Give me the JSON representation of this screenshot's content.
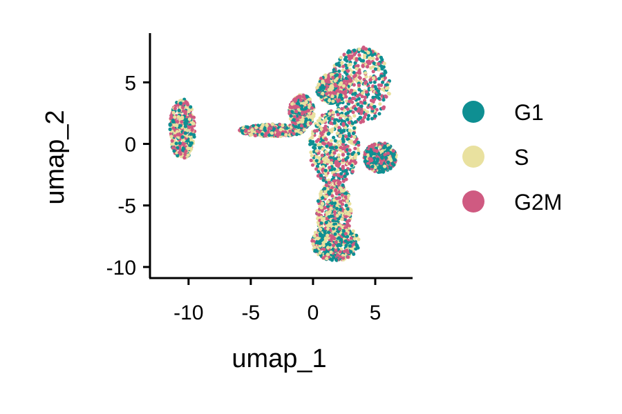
{
  "chart_data": {
    "type": "scatter",
    "title": "",
    "xlabel": "umap_1",
    "ylabel": "umap_2",
    "xlim": [
      -13.1,
      8.0
    ],
    "ylim": [
      -10.9,
      9.0
    ],
    "xticks": [
      -10,
      -5,
      0,
      5
    ],
    "xtick_labels": [
      "-10",
      "-5",
      "0",
      "5"
    ],
    "yticks": [
      -10,
      -5,
      0,
      5
    ],
    "ytick_labels": [
      "-10",
      "-5",
      "0",
      "5"
    ],
    "grid": false,
    "legend_position": "right",
    "series": [
      {
        "name": "G1",
        "color": "#0E8F92"
      },
      {
        "name": "S",
        "color": "#E9E19F"
      },
      {
        "name": "G2M",
        "color": "#CF5A81"
      }
    ],
    "clusters": [
      {
        "center": [
          -10.5,
          1.2
        ],
        "spread": [
          1.0,
          2.5
        ],
        "weights": [
          0.25,
          0.35,
          0.4
        ]
      },
      {
        "center": [
          3.8,
          4.8
        ],
        "spread": [
          2.4,
          3.1
        ],
        "weights": [
          0.4,
          0.25,
          0.35
        ]
      },
      {
        "center": [
          1.5,
          4.5
        ],
        "spread": [
          1.2,
          1.2
        ],
        "weights": [
          0.3,
          0.4,
          0.3
        ]
      },
      {
        "center": [
          1.7,
          -0.3
        ],
        "spread": [
          2.0,
          3.0
        ],
        "weights": [
          0.35,
          0.3,
          0.35
        ]
      },
      {
        "center": [
          5.4,
          -1.1
        ],
        "spread": [
          1.3,
          1.2
        ],
        "weights": [
          0.55,
          0.15,
          0.3
        ]
      },
      {
        "center": [
          1.7,
          -5.5
        ],
        "spread": [
          1.4,
          2.5
        ],
        "weights": [
          0.3,
          0.4,
          0.3
        ]
      },
      {
        "center": [
          1.8,
          -8.0
        ],
        "spread": [
          1.9,
          1.5
        ],
        "weights": [
          0.35,
          0.4,
          0.25
        ]
      },
      {
        "center": [
          -3.3,
          1.1
        ],
        "spread": [
          2.6,
          0.5
        ],
        "weights": [
          0.35,
          0.3,
          0.35
        ]
      },
      {
        "center": [
          -0.9,
          2.6
        ],
        "spread": [
          1.0,
          1.4
        ],
        "weights": [
          0.35,
          0.3,
          0.35
        ]
      }
    ]
  }
}
